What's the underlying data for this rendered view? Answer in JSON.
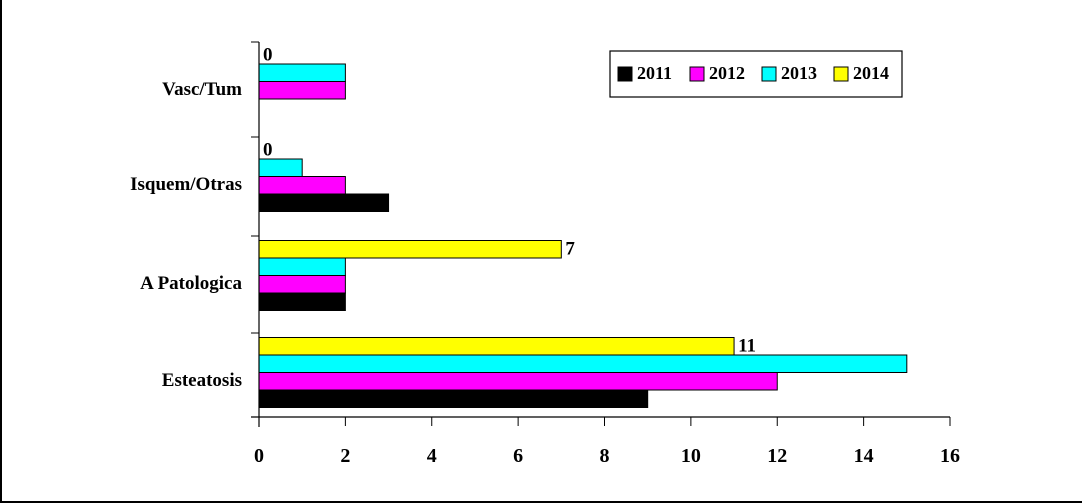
{
  "chart_data": {
    "type": "bar",
    "orientation": "horizontal",
    "categories": [
      "Esteatosis",
      "A Patologica",
      "Isquem/Otras",
      "Vasc/Tum"
    ],
    "series": [
      {
        "name": "2011",
        "color": "#000000",
        "values": [
          9,
          2,
          3,
          0
        ]
      },
      {
        "name": "2012",
        "color": "#ff00ff",
        "values": [
          12,
          2,
          2,
          2
        ]
      },
      {
        "name": "2013",
        "color": "#00ffff",
        "values": [
          15,
          2,
          1,
          2
        ]
      },
      {
        "name": "2014",
        "color": "#ffff00",
        "values": [
          11,
          7,
          0,
          0
        ]
      }
    ],
    "data_labels": [
      {
        "category": "Esteatosis",
        "series": "2014",
        "text": "11"
      },
      {
        "category": "A Patologica",
        "series": "2014",
        "text": "7"
      },
      {
        "category": "Isquem/Otras",
        "series": "2014",
        "text": "0"
      },
      {
        "category": "Vasc/Tum",
        "series": "2014",
        "text": "0"
      }
    ],
    "xlim": [
      0,
      16
    ],
    "xticks": [
      0,
      2,
      4,
      6,
      8,
      10,
      12,
      14,
      16
    ],
    "legend_position": "top-right",
    "grid": false
  }
}
